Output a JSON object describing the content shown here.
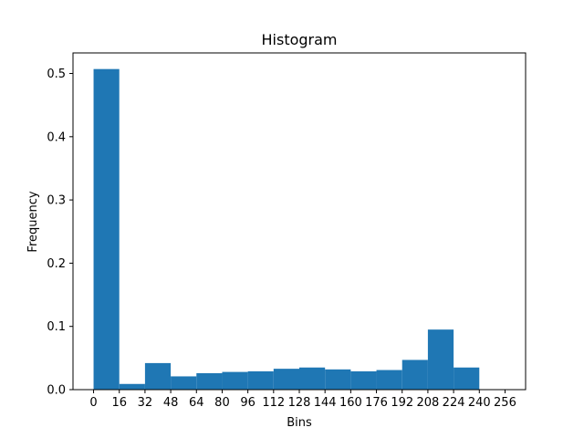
{
  "chart_data": {
    "type": "bar",
    "title": "Histogram",
    "xlabel": "Bins",
    "ylabel": "Frequency",
    "bin_edges": [
      0,
      16,
      32,
      48,
      64,
      80,
      96,
      112,
      128,
      144,
      160,
      176,
      192,
      208,
      224,
      240
    ],
    "values": [
      0.507,
      0.009,
      0.042,
      0.021,
      0.026,
      0.028,
      0.029,
      0.033,
      0.035,
      0.032,
      0.029,
      0.031,
      0.047,
      0.095,
      0.035
    ],
    "x_ticks": [
      "0",
      "16",
      "32",
      "48",
      "64",
      "80",
      "96",
      "112",
      "128",
      "144",
      "160",
      "176",
      "192",
      "208",
      "224",
      "240",
      "256"
    ],
    "y_ticks": [
      "0.0",
      "0.1",
      "0.2",
      "0.3",
      "0.4",
      "0.5"
    ],
    "xlim": [
      -12.8,
      268.8
    ],
    "ylim": [
      0,
      0.5325
    ],
    "grid": false,
    "bar_color": "#1f77b4"
  }
}
